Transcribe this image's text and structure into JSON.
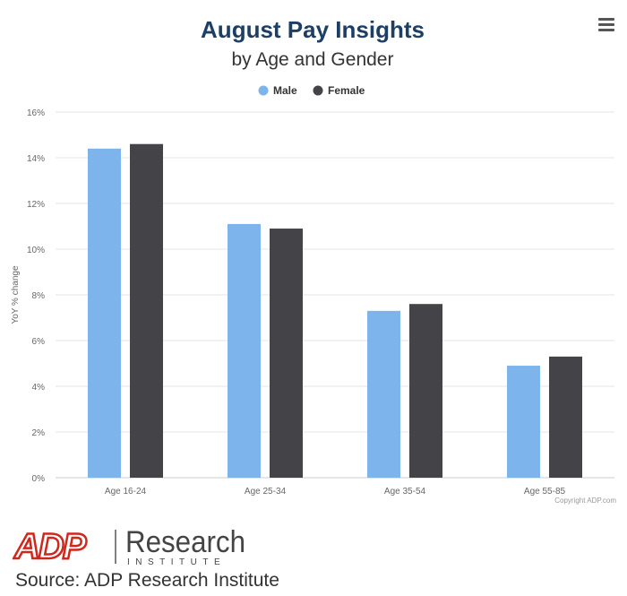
{
  "chart_data": {
    "type": "bar",
    "title": "August Pay Insights",
    "subtitle": "by Age and Gender",
    "ylabel": "YoY % change",
    "xlabel": "",
    "categories": [
      "Age 16-24",
      "Age 25-34",
      "Age 35-54",
      "Age 55-85"
    ],
    "series": [
      {
        "name": "Male",
        "values": [
          14.4,
          11.1,
          7.3,
          4.9
        ]
      },
      {
        "name": "Female",
        "values": [
          14.6,
          10.9,
          7.6,
          5.3
        ]
      }
    ],
    "ylim": [
      0,
      16
    ],
    "yticks": [
      0,
      2,
      4,
      6,
      8,
      10,
      12,
      14,
      16
    ],
    "ytick_labels": [
      "0%",
      "2%",
      "4%",
      "6%",
      "8%",
      "10%",
      "12%",
      "14%",
      "16%"
    ],
    "grid": true,
    "legend_position": "top-center",
    "colors": {
      "Male": "#7cb4eb",
      "Female": "#434348"
    },
    "credit": "Copyright ADP.com"
  },
  "logo": {
    "mark": "ADP",
    "word": "Research",
    "tagline": "INSTITUTE",
    "color": "#d0271d"
  },
  "footer": {
    "source": "Source: ADP Research Institute"
  },
  "menu": {
    "icon": "hamburger-menu-icon"
  }
}
